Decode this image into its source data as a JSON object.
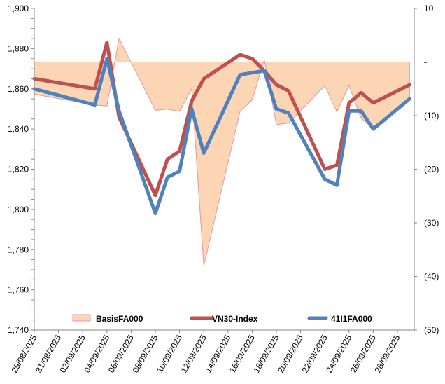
{
  "chart_data": {
    "type": "line",
    "title": "",
    "xlabel": "",
    "ylabel": "",
    "y2label": "",
    "x_start": "2025-08-29",
    "x_end": "2025-09-30",
    "x_tick_labels": [
      "29/08/2025",
      "31/08/2025",
      "02/09/2025",
      "04/09/2025",
      "06/09/2025",
      "08/09/2025",
      "10/09/2025",
      "12/09/2025",
      "14/09/2025",
      "16/09/2025",
      "18/09/2025",
      "20/09/2025",
      "22/09/2025",
      "24/09/2025",
      "26/09/2025",
      "28/09/2025"
    ],
    "ylim": [
      1740,
      1900
    ],
    "y_tick_labels": [
      "1,740",
      "1,760",
      "1,780",
      "1,800",
      "1,820",
      "1,840",
      "1,860",
      "1,880",
      "1,900"
    ],
    "y_ticks": [
      1740,
      1760,
      1780,
      1800,
      1820,
      1840,
      1860,
      1880,
      1900
    ],
    "y2lim": [
      -50,
      10
    ],
    "y2_ticks": [
      -50,
      -40,
      -30,
      -20,
      -10,
      0,
      10
    ],
    "y2_tick_labels": [
      "(50)",
      "(40)",
      "(30)",
      "(20)",
      "(10)",
      "-",
      "10"
    ],
    "grid": false,
    "legend_position": "bottom-inside",
    "dates": [
      "2025-08-29",
      "2025-09-03",
      "2025-09-04",
      "2025-09-05",
      "2025-09-08",
      "2025-09-09",
      "2025-09-10",
      "2025-09-11",
      "2025-09-12",
      "2025-09-15",
      "2025-09-16",
      "2025-09-17",
      "2025-09-18",
      "2025-09-19",
      "2025-09-22",
      "2025-09-23",
      "2025-09-24",
      "2025-09-25",
      "2025-09-26",
      "2025-09-29"
    ],
    "series": [
      {
        "name": "BasisFA000",
        "type": "area",
        "axis": "right",
        "color": "#fcd5b5",
        "stroke": "#e6969b",
        "values": [
          -6.0,
          -8.0,
          -8.2,
          4.4,
          -9.0,
          -8.8,
          -9.2,
          -5.0,
          -38.0,
          -9.2,
          -7.1,
          0.4,
          -11.7,
          -11.4,
          -4.4,
          -9.3,
          -4.4,
          -10.5,
          -12.4,
          -6.5
        ]
      },
      {
        "name": "VN30-Index",
        "type": "line",
        "axis": "left",
        "color": "#c0504d",
        "values": [
          1865,
          1860,
          1883,
          1846,
          1807,
          1825,
          1829,
          1854,
          1865,
          1877,
          1875,
          1869,
          1862,
          1859,
          1820,
          1822,
          1853,
          1858,
          1853,
          1862
        ]
      },
      {
        "name": "41I1FA000",
        "type": "line",
        "axis": "left",
        "color": "#4f81bd",
        "values": [
          1860,
          1852,
          1875,
          1849,
          1798,
          1816,
          1819,
          1850,
          1828,
          1867,
          1868,
          1869,
          1850,
          1848,
          1815,
          1812,
          1849,
          1849,
          1840,
          1855
        ]
      }
    ]
  }
}
